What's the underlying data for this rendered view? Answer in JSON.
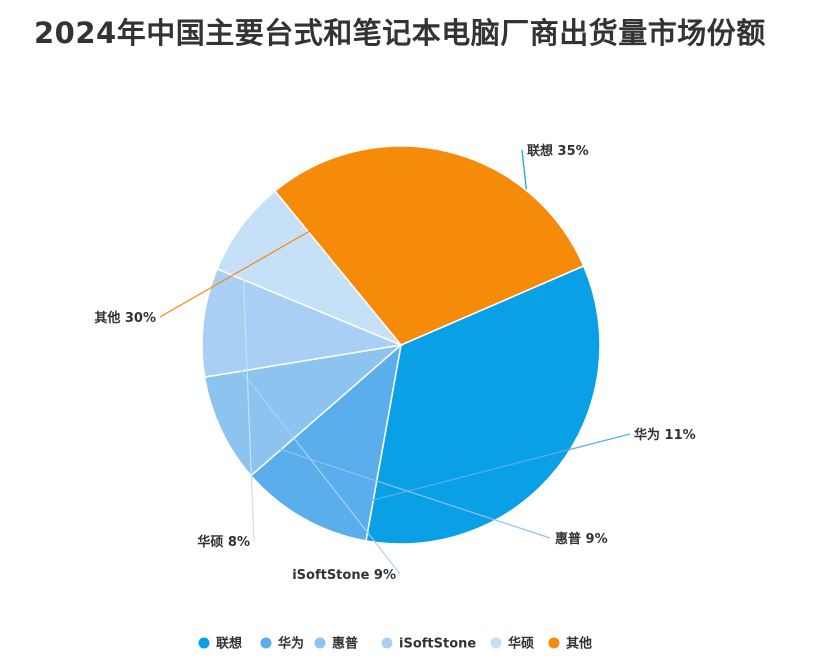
{
  "chart_data": {
    "type": "pie",
    "title": "2024年中国主要台式和笔记本电脑厂商出货量市场份额",
    "unit": "%",
    "legend_position": "bottom",
    "slices": [
      {
        "name": "联想",
        "value": 35,
        "label": "联想 35%",
        "color": "#0aa0e6"
      },
      {
        "name": "华为",
        "value": 11,
        "label": "华为 11%",
        "color": "#5aaeeb"
      },
      {
        "name": "惠普",
        "value": 9,
        "label": "惠普 9%",
        "color": "#8cc4ef"
      },
      {
        "name": "iSoftStone",
        "value": 9,
        "label": "iSoftStone 9%",
        "color": "#a9d0f4"
      },
      {
        "name": "华硕",
        "value": 8,
        "label": "华硕 8%",
        "color": "#c6e1f7"
      },
      {
        "name": "其他",
        "value": 30,
        "label": "其他 30%",
        "color": "#f68a09"
      }
    ]
  }
}
